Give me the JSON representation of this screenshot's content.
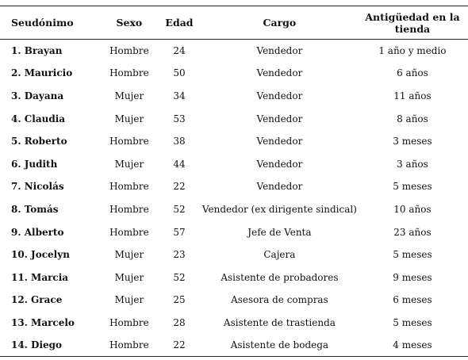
{
  "headers": {
    "seudonimo": "Seudónimo",
    "sexo": "Sexo",
    "edad": "Edad",
    "cargo": "Cargo",
    "antiguedad_line1": "Antigüedad en la",
    "antiguedad_line2": "tienda"
  },
  "rows": [
    {
      "seudonimo": "1. Brayan",
      "sexo": "Hombre",
      "edad": "24",
      "cargo": "Vendedor",
      "antiguedad": "1 año y medio"
    },
    {
      "seudonimo": "2. Mauricio",
      "sexo": "Hombre",
      "edad": "50",
      "cargo": "Vendedor",
      "antiguedad": "6 años"
    },
    {
      "seudonimo": "3. Dayana",
      "sexo": "Mujer",
      "edad": "34",
      "cargo": "Vendedor",
      "antiguedad": "11 años"
    },
    {
      "seudonimo": "4. Claudia",
      "sexo": "Mujer",
      "edad": "53",
      "cargo": "Vendedor",
      "antiguedad": "8 años"
    },
    {
      "seudonimo": "5. Roberto",
      "sexo": "Hombre",
      "edad": "38",
      "cargo": "Vendedor",
      "antiguedad": "3 meses"
    },
    {
      "seudonimo": "6. Judith",
      "sexo": "Mujer",
      "edad": "44",
      "cargo": "Vendedor",
      "antiguedad": "3 años"
    },
    {
      "seudonimo": "7. Nicolás",
      "sexo": "Hombre",
      "edad": "22",
      "cargo": "Vendedor",
      "antiguedad": "5 meses"
    },
    {
      "seudonimo": "8. Tomás",
      "sexo": "Hombre",
      "edad": "52",
      "cargo": "Vendedor (ex dirigente sindical)",
      "antiguedad": "10 años"
    },
    {
      "seudonimo": "9. Alberto",
      "sexo": "Hombre",
      "edad": "57",
      "cargo": "Jefe de Venta",
      "antiguedad": "23 años"
    },
    {
      "seudonimo": "10. Jocelyn",
      "sexo": "Mujer",
      "edad": "23",
      "cargo": "Cajera",
      "antiguedad": "5 meses"
    },
    {
      "seudonimo": "11. Marcia",
      "sexo": "Mujer",
      "edad": "52",
      "cargo": "Asistente de probadores",
      "antiguedad": "9 meses"
    },
    {
      "seudonimo": "12. Grace",
      "sexo": "Mujer",
      "edad": "25",
      "cargo": "Asesora de compras",
      "antiguedad": "6 meses"
    },
    {
      "seudonimo": "13. Marcelo",
      "sexo": "Hombre",
      "edad": "28",
      "cargo": "Asistente de trastienda",
      "antiguedad": "5 meses"
    },
    {
      "seudonimo": "14. Diego",
      "sexo": "Hombre",
      "edad": "22",
      "cargo": "Asistente de bodega",
      "antiguedad": "4 meses"
    }
  ]
}
